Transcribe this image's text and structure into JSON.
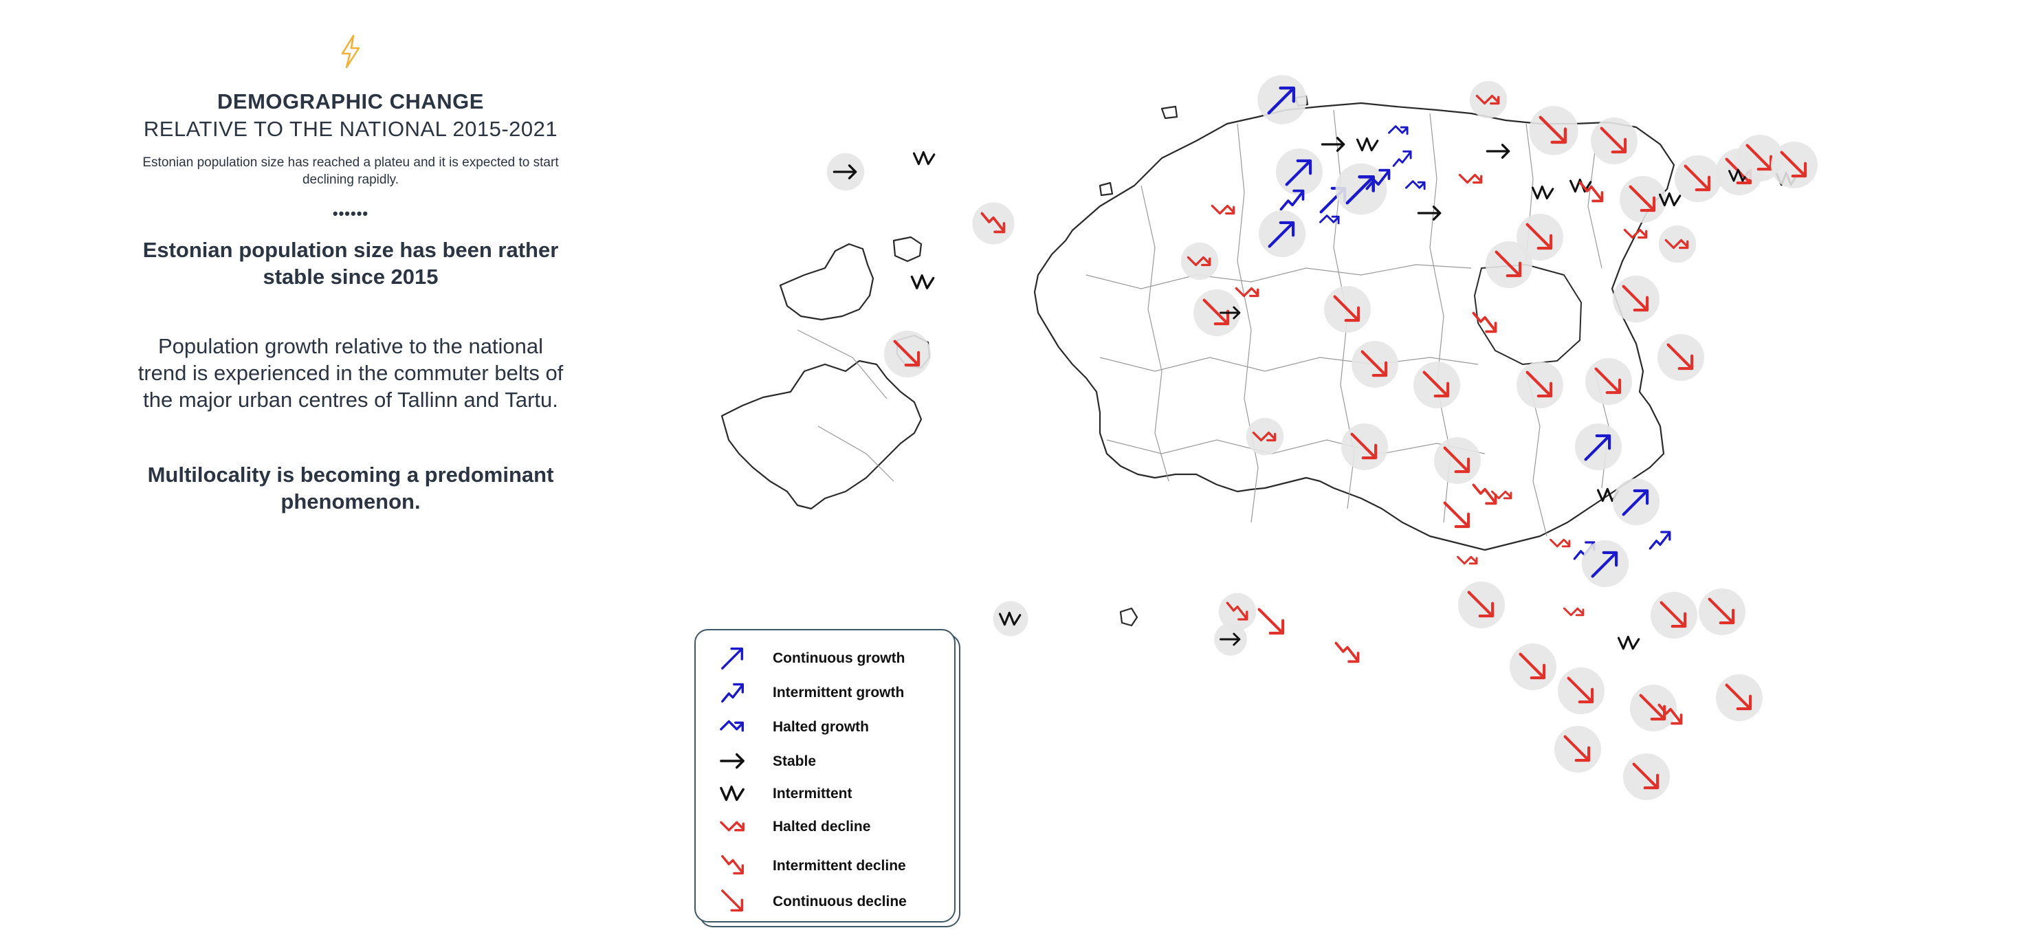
{
  "header": {
    "title_bold": "DEMOGRAPHIC CHANGE",
    "title_sub": "RELATIVE TO THE NATIONAL 2015-2021",
    "intro": "Estonian population size has reached a plateu and it is expected to start declining rapidly.",
    "divider": "••••••"
  },
  "body": {
    "headline": "Estonian population size has been rather stable since 2015",
    "paragraph": "Population growth relative to the national trend is experienced in the commuter belts of the major urban centres of Tallinn and Tartu.",
    "headline2": "Multilocality is becoming a predominant phenomenon."
  },
  "legend": {
    "items": [
      {
        "label": "Continuous growth",
        "type": "continuous-growth",
        "color": "#1a1acc"
      },
      {
        "label": "Intermittent growth",
        "type": "intermittent-growth",
        "color": "#1a1acc"
      },
      {
        "label": "Halted growth",
        "type": "halted-growth",
        "color": "#1a1acc"
      },
      {
        "label": "Stable",
        "type": "stable",
        "color": "#111111"
      },
      {
        "label": "Intermittent",
        "type": "intermittent",
        "color": "#111111"
      },
      {
        "label": "Halted decline",
        "type": "halted-decline",
        "color": "#e0322b"
      },
      {
        "label": "Intermittent decline",
        "type": "intermittent-decline",
        "color": "#e0322b"
      },
      {
        "label": "Continuous decline",
        "type": "continuous-decline",
        "color": "#e0322b"
      }
    ]
  },
  "colors": {
    "text": "#2b3442",
    "growth": "#1a1acc",
    "decline": "#e0322b",
    "neutral": "#111111",
    "circle": "#e6e6e6",
    "bolt": "#f2b035",
    "legend_border": "#3f5868"
  }
}
